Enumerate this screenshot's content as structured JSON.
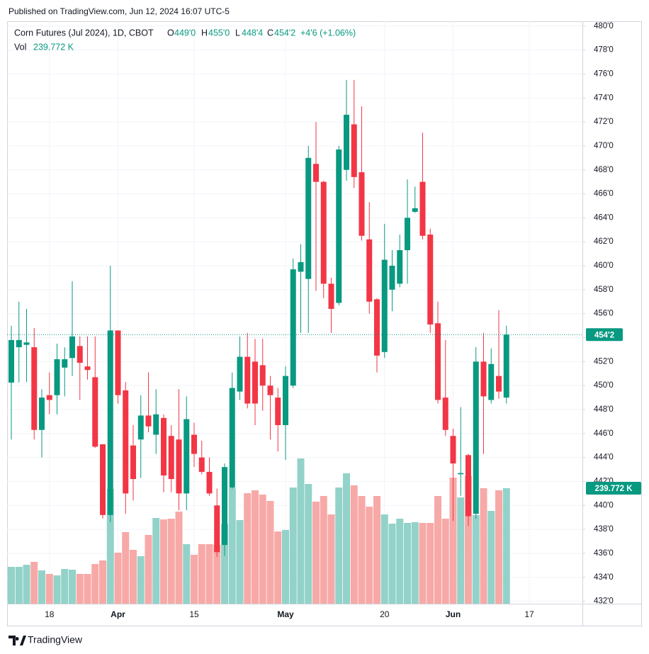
{
  "header": {
    "published": "Published on TradingView.com, Jun 12, 2024 16:07 UTC-5"
  },
  "footer": {
    "brand": "TradingView"
  },
  "legend": {
    "symbol": "Corn Futures (Jul 2024), 1D, CBOT",
    "o_key": "O",
    "o": "449'0",
    "h_key": "H",
    "h": "455'0",
    "l_key": "L",
    "l": "448'4",
    "c_key": "C",
    "c": "454'2",
    "change": "+4'6 (+1.06%)",
    "vol_key": "Vol",
    "vol": "239.772 K"
  },
  "chart_data": {
    "type": "candlestick",
    "categories": [
      null,
      null,
      null,
      null,
      null,
      "18",
      null,
      null,
      null,
      null,
      null,
      null,
      null,
      null,
      "Apr",
      null,
      null,
      null,
      null,
      null,
      null,
      null,
      null,
      null,
      "15",
      null,
      null,
      null,
      null,
      null,
      null,
      null,
      null,
      null,
      null,
      null,
      "May",
      null,
      null,
      null,
      null,
      null,
      null,
      null,
      null,
      null,
      null,
      null,
      null,
      "20",
      null,
      null,
      null,
      null,
      null,
      null,
      null,
      null,
      "Jun",
      null,
      null,
      null,
      null,
      null,
      null,
      null,
      null,
      null,
      "17"
    ],
    "open": [
      450.25,
      453.2,
      453.4,
      453.2,
      446.3,
      449.2,
      449.2,
      451.5,
      452.3,
      453.3,
      451.6,
      450.7,
      445.1,
      439.2,
      454.6,
      449.6,
      445.0,
      445.5,
      447.5,
      445.9,
      447.3,
      445.8,
      445.5,
      441.0,
      445.9,
      444.0,
      442.8,
      440.0,
      436.7,
      441.5,
      449.5,
      452.4,
      452.0,
      451.7,
      450.0,
      449.0,
      446.7,
      450.0,
      459.5,
      458.9,
      468.5,
      467.0,
      458.5,
      456.9,
      468.0,
      471.8,
      467.8,
      462.2,
      457.2,
      452.8,
      458.0,
      458.5,
      461.3,
      464.5,
      467.0,
      462.6,
      455.2,
      449.0,
      445.8,
      442.6,
      444.2,
      439.3,
      452.0,
      448.8,
      450.8,
      449.0,
      null,
      null,
      null
    ],
    "high": [
      455,
      457.0,
      456.4,
      454.8,
      449.7,
      451.1,
      453.5,
      453.2,
      458.7,
      454.1,
      454.1,
      454.1,
      445.1,
      460.0,
      454.6,
      450.3,
      446.7,
      449.2,
      451.1,
      449.7,
      447.6,
      446.7,
      449.7,
      449.1,
      446.9,
      445.4,
      444.0,
      441.4,
      443.5,
      451.1,
      454.1,
      454.4,
      453.9,
      453.9,
      450.8,
      449.8,
      451.6,
      460.6,
      461.8,
      470.0,
      472.0,
      467.1,
      459.0,
      470.0,
      475.5,
      475.5,
      473.3,
      465.3,
      457.3,
      463.5,
      461.3,
      462.6,
      467.2,
      466.6,
      471.1,
      463.1,
      457.0,
      453.8,
      446.4,
      448.2,
      444.3,
      453.2,
      454.4,
      453.1,
      456.3,
      455,
      null,
      null,
      null
    ],
    "low": [
      445.5,
      450.25,
      450.3,
      445.5,
      444.0,
      447.6,
      447.6,
      449.1,
      450.8,
      448.8,
      450.5,
      444.8,
      438.9,
      438.6,
      448.5,
      439.3,
      440.4,
      442.3,
      446.1,
      444.3,
      441.1,
      441.1,
      439.6,
      439.6,
      443.2,
      442.6,
      440.8,
      435.7,
      435.8,
      441.4,
      448.8,
      448.1,
      446.7,
      447.9,
      445.5,
      444.5,
      443.8,
      449.8,
      454.4,
      454.4,
      457.9,
      457.3,
      454.4,
      456.7,
      467.1,
      466.5,
      462.1,
      456.0,
      451.1,
      452.3,
      456.2,
      458.2,
      458.5,
      464.4,
      462.2,
      454.4,
      448.5,
      445.8,
      438.7,
      440.8,
      438.3,
      438.9,
      444.3,
      448.5,
      448.9,
      448.5,
      null,
      null,
      null
    ],
    "close": [
      453.8,
      453.8,
      453.6,
      446.3,
      449.0,
      448.8,
      452.2,
      452.2,
      454.1,
      451.9,
      451.3,
      444.9,
      439.2,
      454.6,
      449.2,
      441.0,
      442.2,
      447.5,
      446.6,
      447.6,
      442.5,
      442.2,
      441.0,
      447.2,
      444.3,
      442.8,
      441.0,
      436.1,
      443.2,
      449.8,
      452.4,
      448.5,
      448.5,
      450.0,
      449.2,
      446.7,
      450.8,
      459.7,
      460.3,
      469.0,
      467.0,
      458.5,
      456.4,
      469.7,
      472.6,
      467.4,
      462.5,
      457.0,
      452.5,
      460.5,
      460.0,
      461.3,
      464.0,
      464.8,
      462.5,
      455.1,
      448.8,
      446.3,
      443.5,
      442.7,
      439.1,
      452.0,
      449.1,
      451.8,
      449.5,
      454.25,
      null,
      null,
      null
    ],
    "volume": [
      76500,
      76500,
      80900,
      86800,
      69100,
      61800,
      58800,
      72100,
      70600,
      61800,
      61800,
      82400,
      89700,
      238300,
      105900,
      148600,
      111800,
      98600,
      142700,
      178000,
      175000,
      176500,
      191200,
      123600,
      101500,
      123600,
      123600,
      122100,
      164800,
      241200,
      173600,
      229500,
      235400,
      226500,
      213300,
      150000,
      153000,
      241200,
      301600,
      248600,
      211800,
      223600,
      185300,
      241200,
      270700,
      245700,
      223600,
      201500,
      223600,
      185300,
      166200,
      176500,
      167700,
      169200,
      167700,
      167700,
      223600,
      176500,
      261800,
      220700,
      264800,
      183900,
      239800,
      192700,
      235400,
      239772,
      null,
      null,
      null
    ],
    "close_label": "454'2",
    "volume_label": "239.772 K",
    "up_color": "#089981",
    "down_color": "#f23645",
    "volume_up_color": "#92d2c9",
    "volume_down_color": "#f7a9a7",
    "ylim": [
      431.8,
      480.4
    ],
    "yticks": [
      {
        "value": 432,
        "label": "432'0"
      },
      {
        "value": 434,
        "label": "434'0"
      },
      {
        "value": 436,
        "label": "436'0"
      },
      {
        "value": 438,
        "label": "438'0"
      },
      {
        "value": 440,
        "label": "440'0"
      },
      {
        "value": 442,
        "label": "442'0"
      },
      {
        "value": 444,
        "label": "444'0"
      },
      {
        "value": 446,
        "label": "446'0"
      },
      {
        "value": 448,
        "label": "448'0"
      },
      {
        "value": 450,
        "label": "450'0"
      },
      {
        "value": 452,
        "label": "452'0"
      },
      {
        "value": 454,
        "label": "454'0"
      },
      {
        "value": 456,
        "label": "456'0"
      },
      {
        "value": 458,
        "label": "458'0"
      },
      {
        "value": 460,
        "label": "460'0"
      },
      {
        "value": 462,
        "label": "462'0"
      },
      {
        "value": 464,
        "label": "464'0"
      },
      {
        "value": 466,
        "label": "466'0"
      },
      {
        "value": 468,
        "label": "468'0"
      },
      {
        "value": 470,
        "label": "470'0"
      },
      {
        "value": 472,
        "label": "472'0"
      },
      {
        "value": 474,
        "label": "474'0"
      },
      {
        "value": 476,
        "label": "476'0"
      },
      {
        "value": 478,
        "label": "478'0"
      },
      {
        "value": 480,
        "label": "480'0"
      }
    ],
    "grid": true
  }
}
